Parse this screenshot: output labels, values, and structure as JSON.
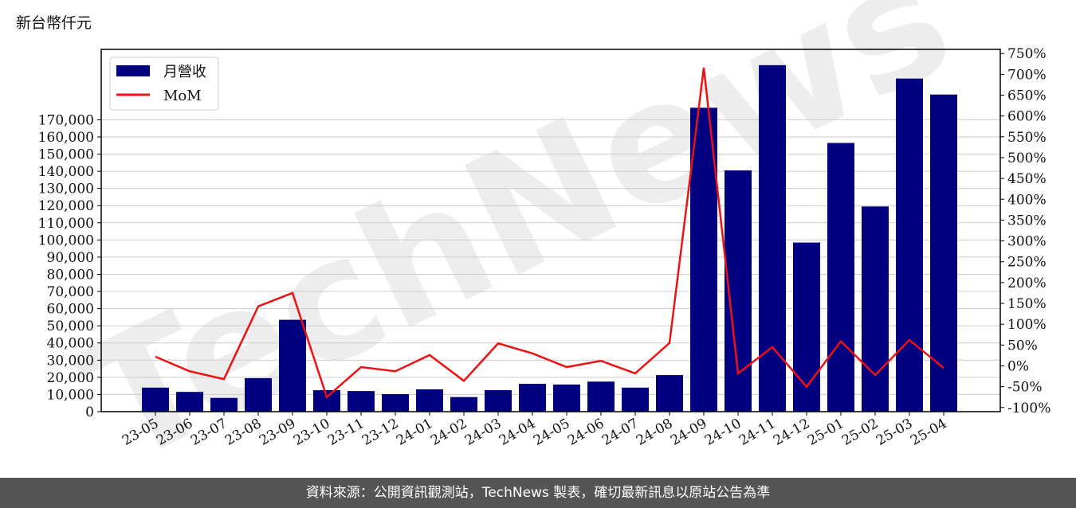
{
  "unit_label": "新台幣仟元",
  "watermark": "TechNews",
  "footer_text": "資料來源：公開資訊觀測站，TechNews 製表，確切最新訊息以原站公告為準",
  "colors": {
    "bar": "#000080",
    "line": "#ee1111",
    "grid": "#cccccc",
    "footer_bg": "#555555"
  },
  "chart_data": {
    "type": "bar",
    "legend_placement": "top-left",
    "grid": true,
    "categories": [
      "23-05",
      "23-06",
      "23-07",
      "23-08",
      "23-09",
      "23-10",
      "23-11",
      "23-12",
      "24-01",
      "24-02",
      "24-03",
      "24-04",
      "24-05",
      "24-06",
      "24-07",
      "24-08",
      "24-09",
      "24-10",
      "24-11",
      "24-12",
      "25-01",
      "25-02",
      "25-03",
      "25-04"
    ],
    "series": [
      {
        "name": "月營收",
        "type": "bar",
        "axis": "left",
        "values": [
          14000,
          11500,
          8000,
          19500,
          53500,
          12500,
          12000,
          10200,
          13000,
          8500,
          12500,
          16200,
          15800,
          17500,
          14000,
          21300,
          177000,
          140500,
          201800,
          98500,
          156500,
          119500,
          194000,
          184700
        ]
      },
      {
        "name": "MoM",
        "type": "line",
        "axis": "right",
        "values": [
          22,
          -13,
          -32,
          143,
          175,
          -75,
          -3,
          -13,
          26,
          -36,
          54,
          30,
          -3,
          12,
          -18,
          55,
          716,
          -18,
          45,
          -50,
          59,
          -22,
          62,
          -5
        ]
      }
    ],
    "y_left": {
      "ylim": [
        0,
        211000
      ],
      "ticks": [
        0,
        10000,
        20000,
        30000,
        40000,
        50000,
        60000,
        70000,
        80000,
        90000,
        100000,
        110000,
        120000,
        130000,
        140000,
        150000,
        160000,
        170000
      ],
      "tick_labels": [
        "0",
        "10,000",
        "20,000",
        "30,000",
        "40,000",
        "50,000",
        "60,000",
        "70,000",
        "80,000",
        "90,000",
        "100,000",
        "110,000",
        "120,000",
        "130,000",
        "140,000",
        "150,000",
        "160,000",
        "170,000"
      ]
    },
    "y_right": {
      "ylim": [
        -110,
        760
      ],
      "ticks": [
        -100,
        -50,
        0,
        50,
        100,
        150,
        200,
        250,
        300,
        350,
        400,
        450,
        500,
        550,
        600,
        650,
        700,
        750
      ],
      "tick_labels": [
        "-100%",
        "-50%",
        "0%",
        "50%",
        "100%",
        "150%",
        "200%",
        "250%",
        "300%",
        "350%",
        "400%",
        "450%",
        "500%",
        "550%",
        "600%",
        "650%",
        "700%",
        "750%"
      ]
    }
  }
}
